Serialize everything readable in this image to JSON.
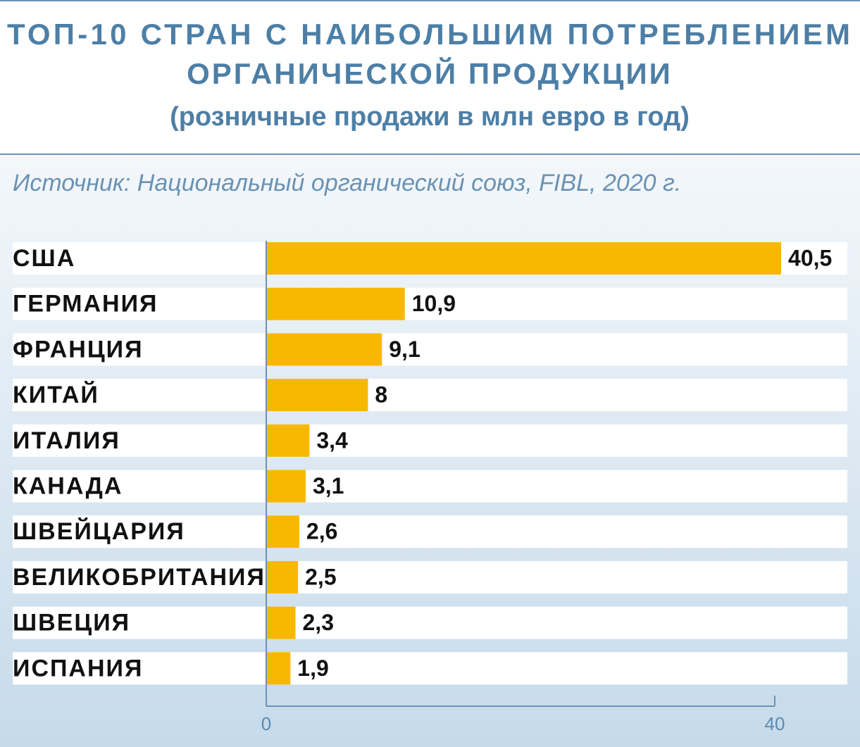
{
  "chart_data": {
    "type": "barh",
    "title": [
      "ТОП-10 СТРАН С НАИБОЛЬШИМ ПОТРЕБЛЕНИЕМ",
      "ОРГАНИЧЕСКОЙ ПРОДУКЦИИ"
    ],
    "subtitle": "(розничные продажи в млн евро в год)",
    "source": "Источник: Национальный органический союз, FIBL, 2020 г.",
    "categories": [
      "США",
      "ГЕРМАНИЯ",
      "ФРАНЦИЯ",
      "КИТАЙ",
      "ИТАЛИЯ",
      "КАНАДА",
      "ШВЕЙЦАРИЯ",
      "ВЕЛИКОБРИТАНИЯ",
      "ШВЕЦИЯ",
      "ИСПАНИЯ"
    ],
    "values": [
      40.5,
      10.9,
      9.1,
      8,
      3.4,
      3.1,
      2.6,
      2.5,
      2.3,
      1.9
    ],
    "value_labels": [
      "40,5",
      "10,9",
      "9,1",
      "8",
      "3,4",
      "3,1",
      "2,6",
      "2,5",
      "2,3",
      "1,9"
    ],
    "color": "#f9b800",
    "xlim": [
      0,
      40
    ],
    "xticks": [
      0,
      40
    ]
  }
}
